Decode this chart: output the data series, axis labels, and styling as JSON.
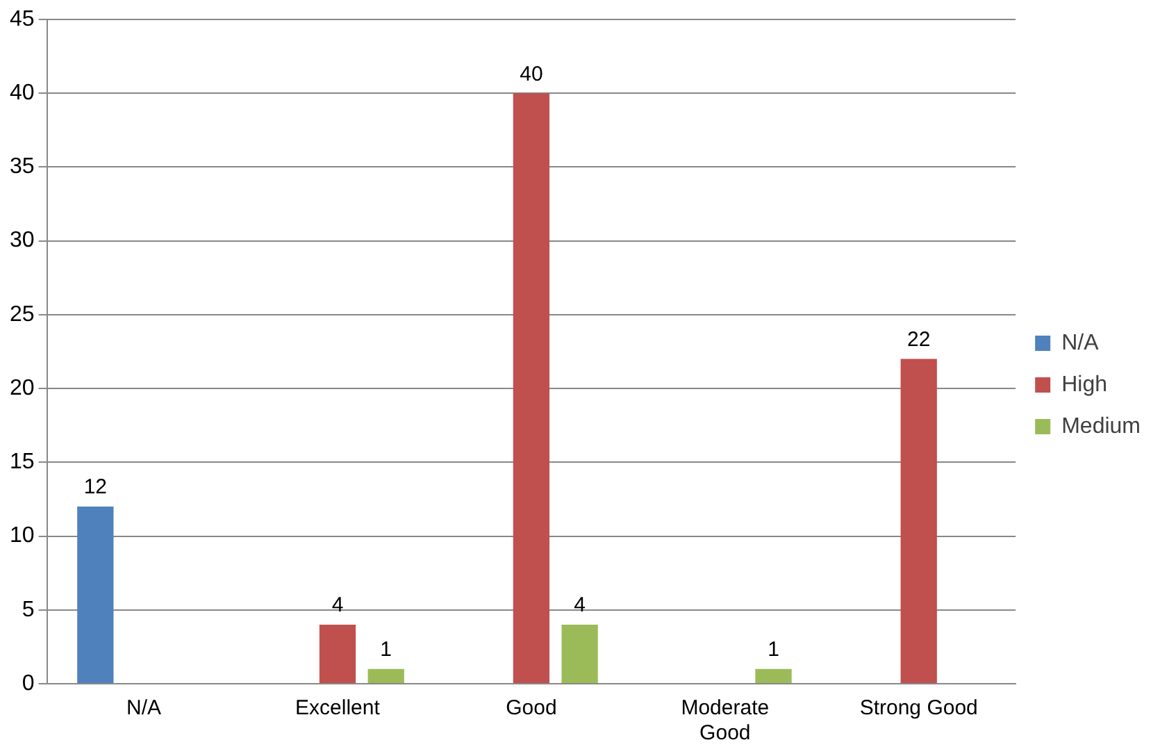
{
  "chart_data": {
    "type": "bar",
    "categories": [
      "N/A",
      "Excellent",
      "Good",
      "Moderate Good",
      "Strong Good"
    ],
    "series": [
      {
        "name": "N/A",
        "color": "#4f81bd",
        "values": [
          12,
          null,
          null,
          null,
          null
        ]
      },
      {
        "name": "High",
        "color": "#c0504d",
        "values": [
          null,
          4,
          40,
          null,
          22
        ]
      },
      {
        "name": "Medium",
        "color": "#9bbb59",
        "values": [
          null,
          1,
          4,
          1,
          null
        ]
      }
    ],
    "ylim": [
      0,
      45
    ],
    "yticks": [
      0,
      5,
      10,
      15,
      20,
      25,
      30,
      35,
      40,
      45
    ],
    "grid": "y",
    "legend": "right",
    "data_labels": true
  }
}
